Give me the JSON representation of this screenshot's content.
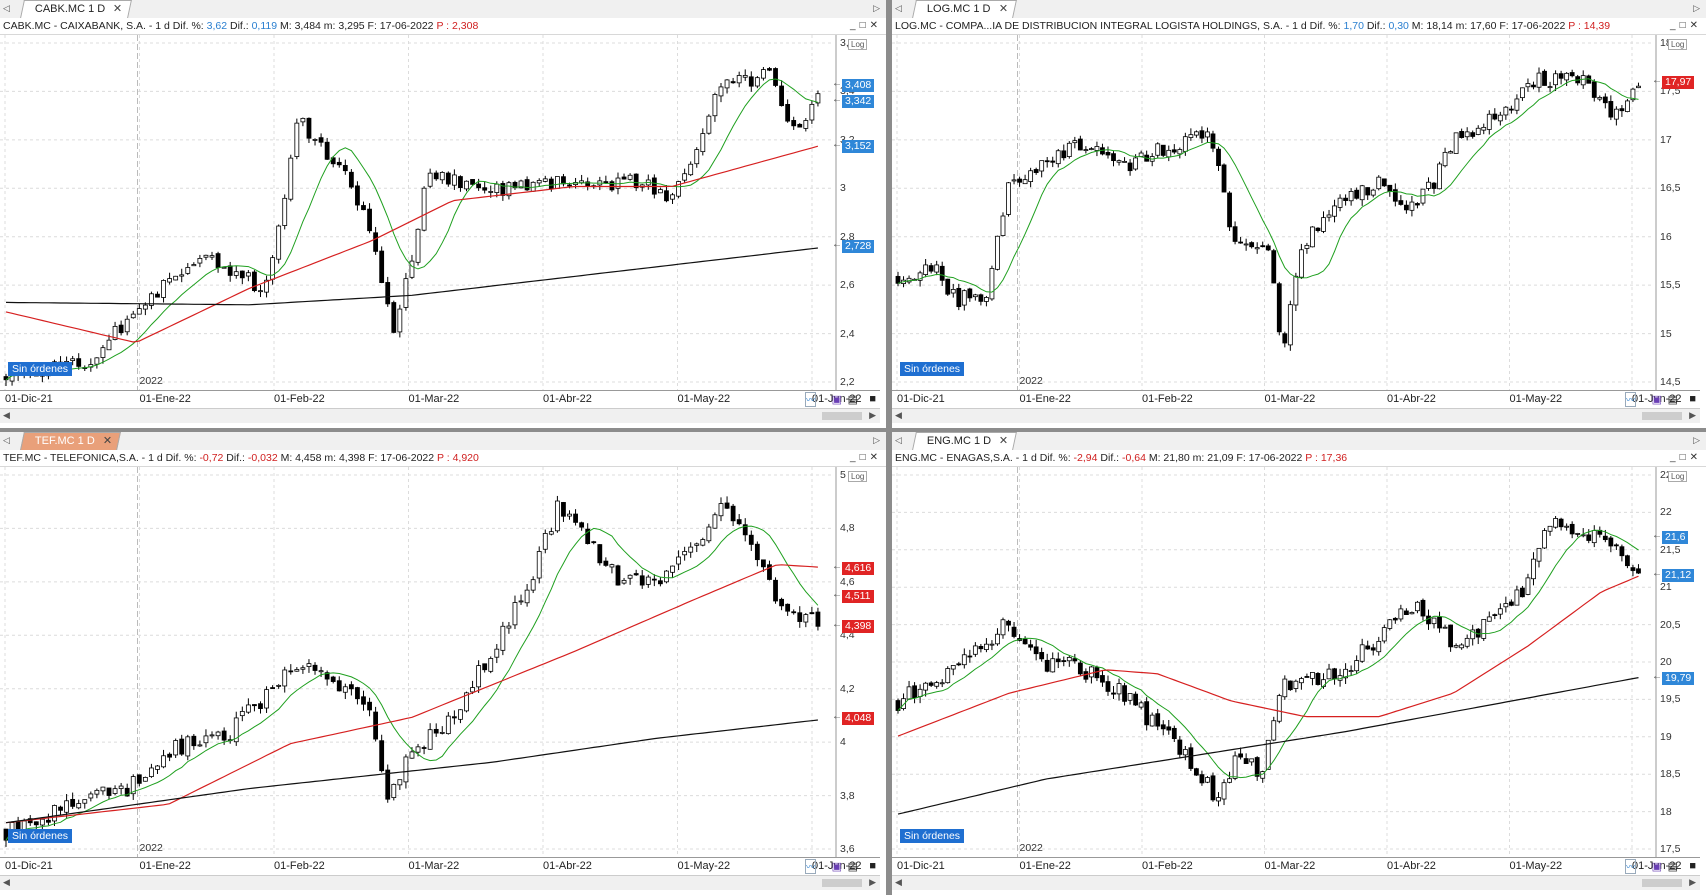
{
  "colors": {
    "ma_short": "#1fa01f",
    "ma_mid": "#d62020",
    "ma_long": "#111111",
    "tag_blue": "#2f87d8",
    "tag_red": "#e02424",
    "sin_bg": "#1f6fd1",
    "active_tab": "#e9a07a"
  },
  "panels": [
    {
      "id": "cabk",
      "tab": "CABK.MC 1 D",
      "tab_active": false,
      "title": {
        "name": "CABK.MC - CAIXABANK, S.A. -  1 d  Dif. %: ",
        "pct": "3,62",
        "dif_label": "  Dif.: ",
        "dif": "0,119",
        "rest": "  M: 3,484  m: 3,295  F: 17-06-2022  ",
        "p": "P : 2,308",
        "pct_color": "blue"
      },
      "year_label": "2022",
      "sin_ordenes": "Sin órdenes",
      "log_label": "Log",
      "x_labels": [
        "01-Dic-21",
        "01-Ene-22",
        "01-Feb-22",
        "01-Mar-22",
        "01-Abr-22",
        "01-May-22",
        "01-Jun-22"
      ],
      "y_ticks": [
        "3,6",
        "3,4",
        "3,2",
        "3",
        "2,8",
        "2,6",
        "2,4",
        "2,2"
      ],
      "ylim": [
        2.12,
        3.62
      ],
      "price_tags": [
        {
          "value": "3,408",
          "v": 3.408,
          "color": "blue"
        },
        {
          "value": "3,342",
          "v": 3.342,
          "color": "blue"
        },
        {
          "value": "3,152",
          "v": 3.152,
          "color": "blue"
        },
        {
          "value": "2,728",
          "v": 2.728,
          "color": "blue"
        }
      ],
      "series": {
        "start": 2.18,
        "end": 3.35,
        "anchors": [
          [
            0,
            2.2
          ],
          [
            0.1,
            2.22
          ],
          [
            0.17,
            2.5
          ],
          [
            0.24,
            2.7
          ],
          [
            0.32,
            2.55
          ],
          [
            0.36,
            3.25
          ],
          [
            0.42,
            3.05
          ],
          [
            0.46,
            2.65
          ],
          [
            0.48,
            2.35
          ],
          [
            0.52,
            3.05
          ],
          [
            0.6,
            2.95
          ],
          [
            0.7,
            3.0
          ],
          [
            0.78,
            3.0
          ],
          [
            0.82,
            2.9
          ],
          [
            0.88,
            3.4
          ],
          [
            0.94,
            3.45
          ],
          [
            0.97,
            3.2
          ],
          [
            1,
            3.35
          ]
        ],
        "ma_mid": [
          [
            0,
            2.45
          ],
          [
            0.16,
            2.32
          ],
          [
            0.3,
            2.55
          ],
          [
            0.45,
            2.75
          ],
          [
            0.55,
            2.92
          ],
          [
            0.7,
            2.98
          ],
          [
            0.82,
            2.98
          ],
          [
            1,
            3.15
          ]
        ],
        "ma_long": [
          [
            0,
            2.49
          ],
          [
            0.3,
            2.48
          ],
          [
            0.5,
            2.52
          ],
          [
            0.75,
            2.62
          ],
          [
            1,
            2.72
          ]
        ]
      }
    },
    {
      "id": "log",
      "tab": "LOG.MC 1 D",
      "tab_active": false,
      "title": {
        "name": "LOG.MC - COMPA...IA DE DISTRIBUCION INTEGRAL LOGISTA HOLDINGS, S.A. -  1 d  Dif. %: ",
        "pct": "1,70",
        "dif_label": "  Dif.: ",
        "dif": "0,30",
        "rest": "  M: 18,14  m: 17,60  F: 17-06-2022  ",
        "p": "P : 14,39",
        "pct_color": "blue"
      },
      "year_label": "2022",
      "sin_ordenes": "Sin órdenes",
      "log_label": "Log",
      "x_labels": [
        "01-Dic-21",
        "01-Ene-22",
        "01-Feb-22",
        "01-Mar-22",
        "01-Abr-22",
        "01-May-22",
        "01-Jun-22"
      ],
      "y_ticks": [
        "18",
        "17,5",
        "17",
        "16,5",
        "16",
        "15,5",
        "15",
        "14,5"
      ],
      "ylim": [
        14.5,
        18.5
      ],
      "price_tags": [
        {
          "value": "17,97",
          "v": 17.97,
          "color": "red"
        }
      ],
      "series": {
        "start": 15.8,
        "end": 17.9,
        "anchors": [
          [
            0,
            15.8
          ],
          [
            0.05,
            15.9
          ],
          [
            0.08,
            15.5
          ],
          [
            0.12,
            15.6
          ],
          [
            0.15,
            16.8
          ],
          [
            0.2,
            17.1
          ],
          [
            0.25,
            17.3
          ],
          [
            0.3,
            17.0
          ],
          [
            0.38,
            17.3
          ],
          [
            0.42,
            17.4
          ],
          [
            0.45,
            16.3
          ],
          [
            0.5,
            16.0
          ],
          [
            0.52,
            15.0
          ],
          [
            0.55,
            16.2
          ],
          [
            0.6,
            16.7
          ],
          [
            0.65,
            16.8
          ],
          [
            0.68,
            16.5
          ],
          [
            0.72,
            16.8
          ],
          [
            0.76,
            17.4
          ],
          [
            0.82,
            17.6
          ],
          [
            0.86,
            18.0
          ],
          [
            0.92,
            18.0
          ],
          [
            0.95,
            17.8
          ],
          [
            0.97,
            17.6
          ],
          [
            1,
            17.9
          ]
        ]
      }
    },
    {
      "id": "tef",
      "tab": "TEF.MC 1 D",
      "tab_active": true,
      "title": {
        "name": "TEF.MC - TELEFONICA,S.A. -  1 d  Dif. %: ",
        "pct": "-0,72",
        "dif_label": "  Dif.: ",
        "dif": "-0,032",
        "rest": "  M: 4,458  m: 4,398  F: 17-06-2022  ",
        "p": "P : 4,920",
        "pct_color": "red"
      },
      "year_label": "2022",
      "sin_ordenes": "Sin órdenes",
      "log_label": "Log",
      "x_labels": [
        "01-Dic-21",
        "01-Ene-22",
        "01-Feb-22",
        "01-Mar-22",
        "01-Abr-22",
        "01-May-22",
        "01-Jun-22"
      ],
      "y_ticks": [
        "5",
        "4,8",
        "4,6",
        "4,4",
        "4,2",
        "4",
        "3,8",
        "3,6"
      ],
      "ylim": [
        3.52,
        5.0
      ],
      "price_tags": [
        {
          "value": "4,616",
          "v": 4.616,
          "color": "red"
        },
        {
          "value": "4,511",
          "v": 4.511,
          "color": "red"
        },
        {
          "value": "4,398",
          "v": 4.398,
          "color": "red"
        },
        {
          "value": "4,048",
          "v": 4.048,
          "color": "red"
        }
      ],
      "series": {
        "start": 3.62,
        "end": 4.4,
        "anchors": [
          [
            0,
            3.62
          ],
          [
            0.08,
            3.72
          ],
          [
            0.15,
            3.78
          ],
          [
            0.2,
            3.92
          ],
          [
            0.28,
            4.0
          ],
          [
            0.35,
            4.25
          ],
          [
            0.4,
            4.2
          ],
          [
            0.45,
            4.05
          ],
          [
            0.47,
            3.75
          ],
          [
            0.5,
            3.9
          ],
          [
            0.55,
            4.05
          ],
          [
            0.6,
            4.3
          ],
          [
            0.65,
            4.6
          ],
          [
            0.68,
            4.85
          ],
          [
            0.72,
            4.7
          ],
          [
            0.76,
            4.55
          ],
          [
            0.82,
            4.6
          ],
          [
            0.88,
            4.85
          ],
          [
            0.92,
            4.7
          ],
          [
            0.96,
            4.45
          ],
          [
            1,
            4.4
          ]
        ],
        "ma_mid": [
          [
            0,
            3.65
          ],
          [
            0.2,
            3.72
          ],
          [
            0.35,
            3.95
          ],
          [
            0.5,
            4.05
          ],
          [
            0.7,
            4.3
          ],
          [
            0.85,
            4.5
          ],
          [
            0.95,
            4.63
          ],
          [
            1,
            4.62
          ]
        ],
        "ma_long": [
          [
            0,
            3.65
          ],
          [
            0.3,
            3.78
          ],
          [
            0.6,
            3.88
          ],
          [
            0.8,
            3.97
          ],
          [
            1,
            4.04
          ]
        ]
      }
    },
    {
      "id": "eng",
      "tab": "ENG.MC 1 D",
      "tab_active": false,
      "title": {
        "name": "ENG.MC - ENAGAS,S.A. -  1 d  Dif. %: ",
        "pct": "-2,94",
        "dif_label": "  Dif.: ",
        "dif": "-0,64",
        "rest": "  M: 21,80  m: 21,09  F: 17-06-2022  ",
        "p": "P : 17,36",
        "pct_color": "red"
      },
      "year_label": "2022",
      "sin_ordenes": "Sin órdenes",
      "log_label": "Log",
      "x_labels": [
        "01-Dic-21",
        "01-Ene-22",
        "01-Feb-22",
        "01-Mar-22",
        "01-Abr-22",
        "01-May-22",
        "01-Jun-22"
      ],
      "y_ticks": [
        "22,5",
        "22",
        "21,5",
        "21",
        "20,5",
        "20",
        "19,5",
        "19",
        "18,5",
        "18",
        "17,5"
      ],
      "ylim": [
        17.5,
        22.5
      ],
      "price_tags": [
        {
          "value": "21,6",
          "v": 21.6,
          "color": "blue"
        },
        {
          "value": "21,12",
          "v": 21.12,
          "color": "blue"
        },
        {
          "value": "19,79",
          "v": 19.79,
          "color": "blue"
        }
      ],
      "series": {
        "start": 19.5,
        "end": 21.2,
        "anchors": [
          [
            0,
            19.5
          ],
          [
            0.06,
            19.8
          ],
          [
            0.12,
            20.2
          ],
          [
            0.15,
            20.5
          ],
          [
            0.2,
            20.0
          ],
          [
            0.25,
            19.9
          ],
          [
            0.3,
            19.6
          ],
          [
            0.35,
            19.2
          ],
          [
            0.4,
            18.7
          ],
          [
            0.43,
            18.2
          ],
          [
            0.46,
            18.8
          ],
          [
            0.49,
            18.6
          ],
          [
            0.52,
            19.7
          ],
          [
            0.56,
            19.8
          ],
          [
            0.6,
            19.9
          ],
          [
            0.65,
            20.3
          ],
          [
            0.7,
            20.8
          ],
          [
            0.75,
            20.2
          ],
          [
            0.8,
            20.5
          ],
          [
            0.85,
            21.0
          ],
          [
            0.88,
            21.8
          ],
          [
            0.92,
            21.6
          ],
          [
            0.96,
            21.6
          ],
          [
            1,
            21.2
          ]
        ],
        "ma_mid": [
          [
            0,
            19.05
          ],
          [
            0.15,
            19.6
          ],
          [
            0.28,
            19.9
          ],
          [
            0.35,
            19.85
          ],
          [
            0.45,
            19.5
          ],
          [
            0.55,
            19.3
          ],
          [
            0.65,
            19.3
          ],
          [
            0.75,
            19.6
          ],
          [
            0.85,
            20.2
          ],
          [
            0.95,
            20.9
          ],
          [
            1,
            21.1
          ]
        ],
        "ma_long": [
          [
            0,
            18.05
          ],
          [
            0.2,
            18.5
          ],
          [
            0.4,
            18.8
          ],
          [
            0.6,
            19.1
          ],
          [
            0.8,
            19.45
          ],
          [
            1,
            19.8
          ]
        ]
      }
    }
  ]
}
